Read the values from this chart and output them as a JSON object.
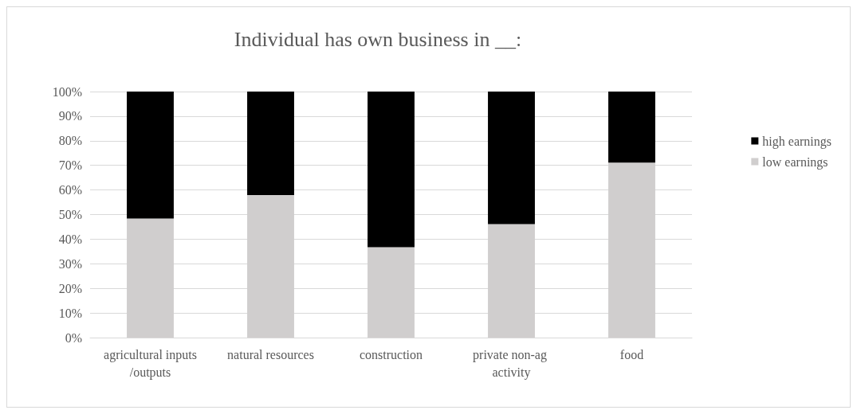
{
  "chart_data": {
    "type": "bar",
    "title": "Individual has own business in __:",
    "stacked": true,
    "categories": [
      "agricultural inputs/outputs",
      "natural resources",
      "construction",
      "private non-ag activity",
      "food"
    ],
    "series": [
      {
        "name": "low earnings",
        "color": "#d0cece",
        "values": [
          48.4,
          57.9,
          36.7,
          46.1,
          71.1
        ]
      },
      {
        "name": "high earnings",
        "color": "#000000",
        "values": [
          51.6,
          42.1,
          63.3,
          53.9,
          28.9
        ]
      }
    ],
    "ylim": [
      0,
      100
    ],
    "yticks": [
      {
        "value": 0,
        "label": "0%"
      },
      {
        "value": 10,
        "label": "10%"
      },
      {
        "value": 20,
        "label": "20%"
      },
      {
        "value": 30,
        "label": "30%"
      },
      {
        "value": 40,
        "label": "40%"
      },
      {
        "value": 50,
        "label": "50%"
      },
      {
        "value": 60,
        "label": "60%"
      },
      {
        "value": 70,
        "label": "70%"
      },
      {
        "value": 80,
        "label": "80%"
      },
      {
        "value": 90,
        "label": "90%"
      },
      {
        "value": 100,
        "label": "100%"
      }
    ],
    "grid": "y",
    "legend": "right"
  }
}
